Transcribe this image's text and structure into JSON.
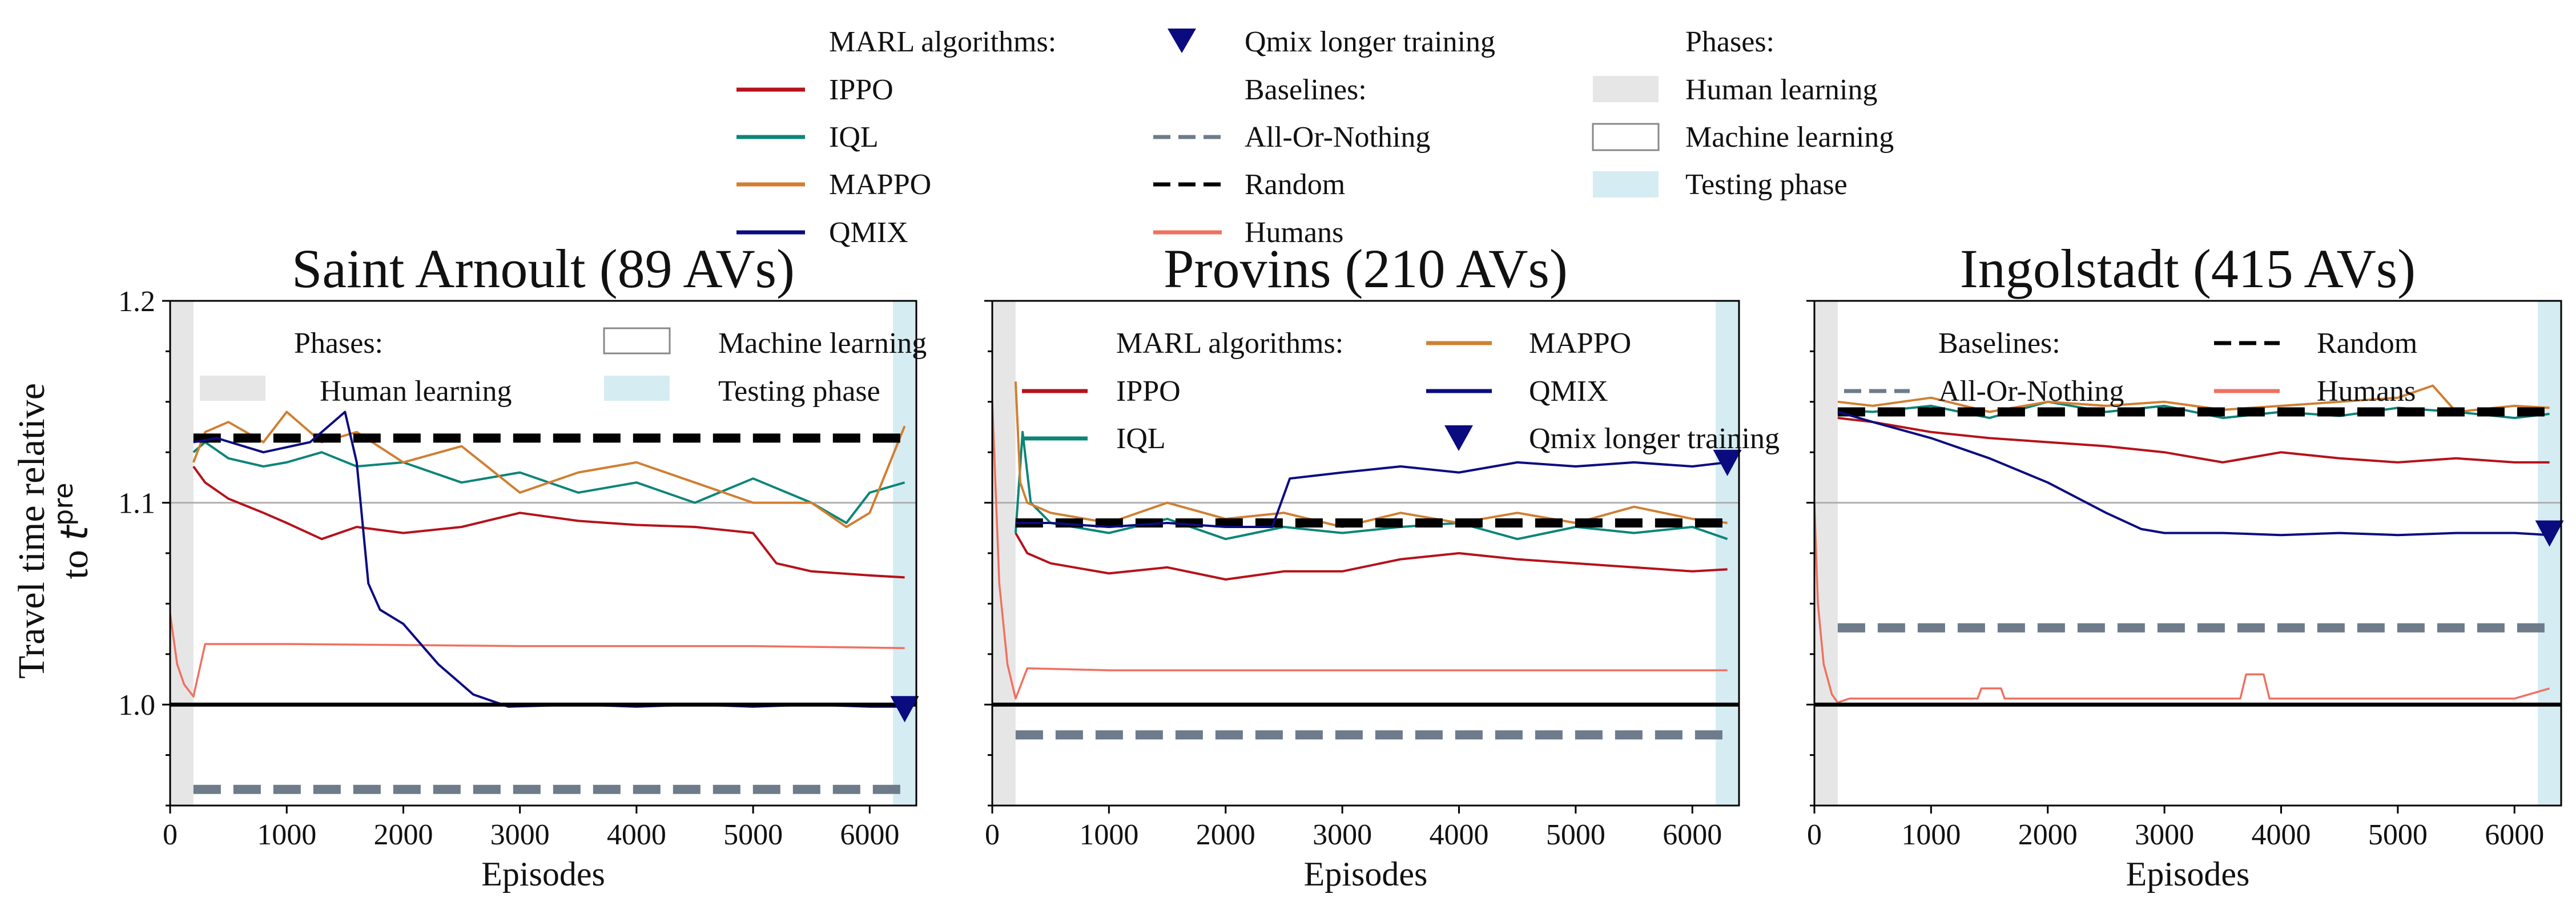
{
  "colors": {
    "ippo": "#b5121b",
    "iql": "#0c8578",
    "mappo": "#d07f32",
    "qmix": "#0b0b80",
    "aon": "#6e7b8b",
    "random": "#000000",
    "humans": "#f07060",
    "human_phase": "#e6e6e6",
    "testing_phase": "#d5ecf2"
  },
  "legend": {
    "marl_title": "MARL algorithms:",
    "ippo": "IPPO",
    "iql": "IQL",
    "mappo": "MAPPO",
    "qmix": "QMIX",
    "qmix_longer": "Qmix longer training",
    "baselines_title": "Baselines:",
    "aon": "All-Or-Nothing",
    "random": "Random",
    "humans": "Humans",
    "phases_title": "Phases:",
    "human_learning": "Human learning",
    "machine_learning": "Machine learning",
    "testing_phase": "Testing phase"
  },
  "y_axis_label_line1": "Travel time relative",
  "y_axis_label_line2_prefix": "to ",
  "y_axis_label_t": "t",
  "y_axis_label_sup": "pre",
  "chart_data": [
    {
      "type": "line",
      "title": "Saint Arnoult (89 AVs)",
      "xlabel": "Episodes",
      "xlim": [
        0,
        6400
      ],
      "ylim": [
        0.95,
        1.2
      ],
      "xticks": [
        "0",
        "1000",
        "2000",
        "3000",
        "4000",
        "5000",
        "6000"
      ],
      "yticks": [
        "1.0",
        "1.1",
        "1.2"
      ],
      "human_phase": [
        0,
        200
      ],
      "testing_phase": [
        6200,
        6400
      ],
      "reference_lines": [
        1.0,
        1.1
      ],
      "legend_group": "phases",
      "series": [
        {
          "name": "IPPO",
          "x": [
            200,
            300,
            500,
            800,
            1000,
            1300,
            1600,
            2000,
            2500,
            3000,
            3500,
            4000,
            4500,
            5000,
            5200,
            5500,
            6000,
            6300
          ],
          "y": [
            1.118,
            1.11,
            1.102,
            1.095,
            1.09,
            1.082,
            1.088,
            1.085,
            1.088,
            1.095,
            1.091,
            1.089,
            1.088,
            1.085,
            1.07,
            1.066,
            1.064,
            1.063
          ]
        },
        {
          "name": "IQL",
          "x": [
            200,
            300,
            500,
            800,
            1000,
            1300,
            1600,
            2000,
            2500,
            3000,
            3500,
            4000,
            4500,
            5000,
            5500,
            5800,
            6000,
            6300
          ],
          "y": [
            1.125,
            1.13,
            1.122,
            1.118,
            1.12,
            1.125,
            1.118,
            1.12,
            1.11,
            1.115,
            1.105,
            1.11,
            1.1,
            1.112,
            1.1,
            1.09,
            1.105,
            1.11
          ]
        },
        {
          "name": "MAPPO",
          "x": [
            200,
            300,
            500,
            800,
            1000,
            1300,
            1600,
            2000,
            2500,
            3000,
            3500,
            4000,
            4500,
            5000,
            5500,
            5800,
            6000,
            6300
          ],
          "y": [
            1.12,
            1.135,
            1.14,
            1.13,
            1.145,
            1.13,
            1.135,
            1.12,
            1.128,
            1.105,
            1.115,
            1.12,
            1.11,
            1.1,
            1.1,
            1.088,
            1.095,
            1.138
          ]
        },
        {
          "name": "QMIX",
          "x": [
            200,
            400,
            800,
            1200,
            1500,
            1600,
            1700,
            1800,
            2000,
            2300,
            2600,
            2900,
            3500,
            4000,
            4500,
            5000,
            5500,
            6000,
            6300
          ],
          "y": [
            1.13,
            1.132,
            1.125,
            1.13,
            1.145,
            1.12,
            1.06,
            1.047,
            1.04,
            1.02,
            1.005,
            0.999,
            1.0,
            0.999,
            1.0,
            0.999,
            1.0,
            0.999,
            0.999
          ]
        },
        {
          "name": "Random",
          "style": "dashed",
          "x": [
            200,
            6300
          ],
          "y": [
            1.132,
            1.132
          ]
        },
        {
          "name": "All-Or-Nothing",
          "style": "dashed",
          "x": [
            200,
            6300
          ],
          "y": [
            0.958,
            0.958
          ]
        },
        {
          "name": "Humans",
          "x": [
            0,
            60,
            120,
            200,
            300,
            1000,
            3000,
            5000,
            6300
          ],
          "y": [
            1.045,
            1.02,
            1.01,
            1.004,
            1.03,
            1.03,
            1.029,
            1.029,
            1.028
          ]
        }
      ],
      "markers": [
        {
          "name": "Qmix longer training",
          "x": 6300,
          "y": 0.998
        }
      ]
    },
    {
      "type": "line",
      "title": "Provins (210 AVs)",
      "xlabel": "Episodes",
      "xlim": [
        0,
        6400
      ],
      "ylim": [
        0.95,
        1.2
      ],
      "xticks": [
        "0",
        "1000",
        "2000",
        "3000",
        "4000",
        "5000",
        "6000"
      ],
      "yticks": [
        "1.0",
        "1.1",
        "1.2"
      ],
      "human_phase": [
        0,
        200
      ],
      "testing_phase": [
        6200,
        6400
      ],
      "reference_lines": [
        1.0,
        1.1
      ],
      "legend_group": "marl",
      "series": [
        {
          "name": "IPPO",
          "x": [
            200,
            300,
            500,
            1000,
            1500,
            2000,
            2500,
            3000,
            3500,
            4000,
            4500,
            5000,
            5500,
            6000,
            6300
          ],
          "y": [
            1.085,
            1.075,
            1.07,
            1.065,
            1.068,
            1.062,
            1.066,
            1.066,
            1.072,
            1.075,
            1.072,
            1.07,
            1.068,
            1.066,
            1.067
          ]
        },
        {
          "name": "IQL",
          "x": [
            200,
            260,
            330,
            500,
            1000,
            1500,
            2000,
            2500,
            3000,
            3500,
            4000,
            4500,
            5000,
            5500,
            6000,
            6300
          ],
          "y": [
            1.085,
            1.135,
            1.1,
            1.09,
            1.085,
            1.092,
            1.082,
            1.088,
            1.085,
            1.088,
            1.09,
            1.082,
            1.088,
            1.085,
            1.088,
            1.082
          ]
        },
        {
          "name": "MAPPO",
          "x": [
            200,
            240,
            300,
            500,
            1000,
            1500,
            2000,
            2500,
            3000,
            3500,
            4000,
            4500,
            5000,
            5500,
            6000,
            6300
          ],
          "y": [
            1.16,
            1.11,
            1.1,
            1.095,
            1.09,
            1.1,
            1.092,
            1.095,
            1.088,
            1.095,
            1.09,
            1.095,
            1.09,
            1.098,
            1.092,
            1.09
          ]
        },
        {
          "name": "QMIX",
          "x": [
            200,
            500,
            1000,
            1500,
            2000,
            2400,
            2550,
            3000,
            3500,
            4000,
            4500,
            5000,
            5500,
            6000,
            6300
          ],
          "y": [
            1.09,
            1.09,
            1.088,
            1.09,
            1.088,
            1.088,
            1.112,
            1.115,
            1.118,
            1.115,
            1.12,
            1.118,
            1.12,
            1.118,
            1.12
          ]
        },
        {
          "name": "Random",
          "style": "dashed",
          "x": [
            200,
            6300
          ],
          "y": [
            1.09,
            1.09
          ]
        },
        {
          "name": "All-Or-Nothing",
          "style": "dashed",
          "x": [
            200,
            6300
          ],
          "y": [
            0.985,
            0.985
          ]
        },
        {
          "name": "Humans",
          "x": [
            0,
            60,
            130,
            200,
            300,
            1000,
            3000,
            5000,
            6300
          ],
          "y": [
            1.15,
            1.06,
            1.02,
            1.003,
            1.018,
            1.017,
            1.017,
            1.017,
            1.017
          ]
        }
      ],
      "markers": [
        {
          "name": "Qmix longer training",
          "x": 6300,
          "y": 1.12
        }
      ]
    },
    {
      "type": "line",
      "title": "Ingolstadt (415 AVs)",
      "xlabel": "Episodes",
      "xlim": [
        0,
        6400
      ],
      "ylim": [
        0.95,
        1.2
      ],
      "xticks": [
        "0",
        "1000",
        "2000",
        "3000",
        "4000",
        "5000",
        "6000"
      ],
      "yticks": [
        "1.0",
        "1.1",
        "1.2"
      ],
      "human_phase": [
        0,
        200
      ],
      "testing_phase": [
        6200,
        6400
      ],
      "reference_lines": [
        1.0,
        1.1
      ],
      "legend_group": "baselines",
      "series": [
        {
          "name": "IPPO",
          "x": [
            200,
            500,
            1000,
            1500,
            2000,
            2500,
            3000,
            3500,
            4000,
            4500,
            5000,
            5500,
            6000,
            6300
          ],
          "y": [
            1.142,
            1.14,
            1.135,
            1.132,
            1.13,
            1.128,
            1.125,
            1.12,
            1.125,
            1.122,
            1.12,
            1.122,
            1.12,
            1.12
          ]
        },
        {
          "name": "IQL",
          "x": [
            200,
            500,
            1000,
            1500,
            2000,
            2500,
            3000,
            3500,
            4000,
            4500,
            5000,
            5500,
            6000,
            6300
          ],
          "y": [
            1.146,
            1.145,
            1.148,
            1.142,
            1.15,
            1.145,
            1.148,
            1.142,
            1.145,
            1.143,
            1.147,
            1.145,
            1.142,
            1.144
          ]
        },
        {
          "name": "MAPPO",
          "x": [
            200,
            500,
            1000,
            1500,
            2000,
            2500,
            3000,
            3500,
            4000,
            4500,
            5000,
            5300,
            5500,
            6000,
            6300
          ],
          "y": [
            1.15,
            1.148,
            1.152,
            1.145,
            1.15,
            1.148,
            1.15,
            1.146,
            1.148,
            1.15,
            1.152,
            1.158,
            1.145,
            1.148,
            1.147
          ]
        },
        {
          "name": "QMIX",
          "x": [
            200,
            500,
            1000,
            1500,
            2000,
            2500,
            2800,
            3000,
            3500,
            4000,
            4500,
            5000,
            5500,
            6000,
            6300
          ],
          "y": [
            1.145,
            1.14,
            1.132,
            1.122,
            1.11,
            1.095,
            1.087,
            1.085,
            1.085,
            1.084,
            1.085,
            1.084,
            1.085,
            1.085,
            1.084
          ]
        },
        {
          "name": "Random",
          "style": "dashed",
          "x": [
            200,
            6300
          ],
          "y": [
            1.145,
            1.145
          ]
        },
        {
          "name": "All-Or-Nothing",
          "style": "dashed",
          "x": [
            200,
            6300
          ],
          "y": [
            1.038,
            1.038
          ]
        },
        {
          "name": "Humans",
          "x": [
            0,
            30,
            80,
            150,
            200,
            300,
            1000,
            1400,
            1430,
            1600,
            1630,
            1800,
            3500,
            3650,
            3700,
            3850,
            3900,
            5000,
            6000,
            6300
          ],
          "y": [
            1.1,
            1.05,
            1.02,
            1.005,
            1.001,
            1.003,
            1.003,
            1.003,
            1.008,
            1.008,
            1.003,
            1.003,
            1.003,
            1.003,
            1.015,
            1.015,
            1.003,
            1.003,
            1.003,
            1.008
          ]
        }
      ],
      "markers": [
        {
          "name": "Qmix longer training",
          "x": 6300,
          "y": 1.085
        }
      ]
    }
  ]
}
